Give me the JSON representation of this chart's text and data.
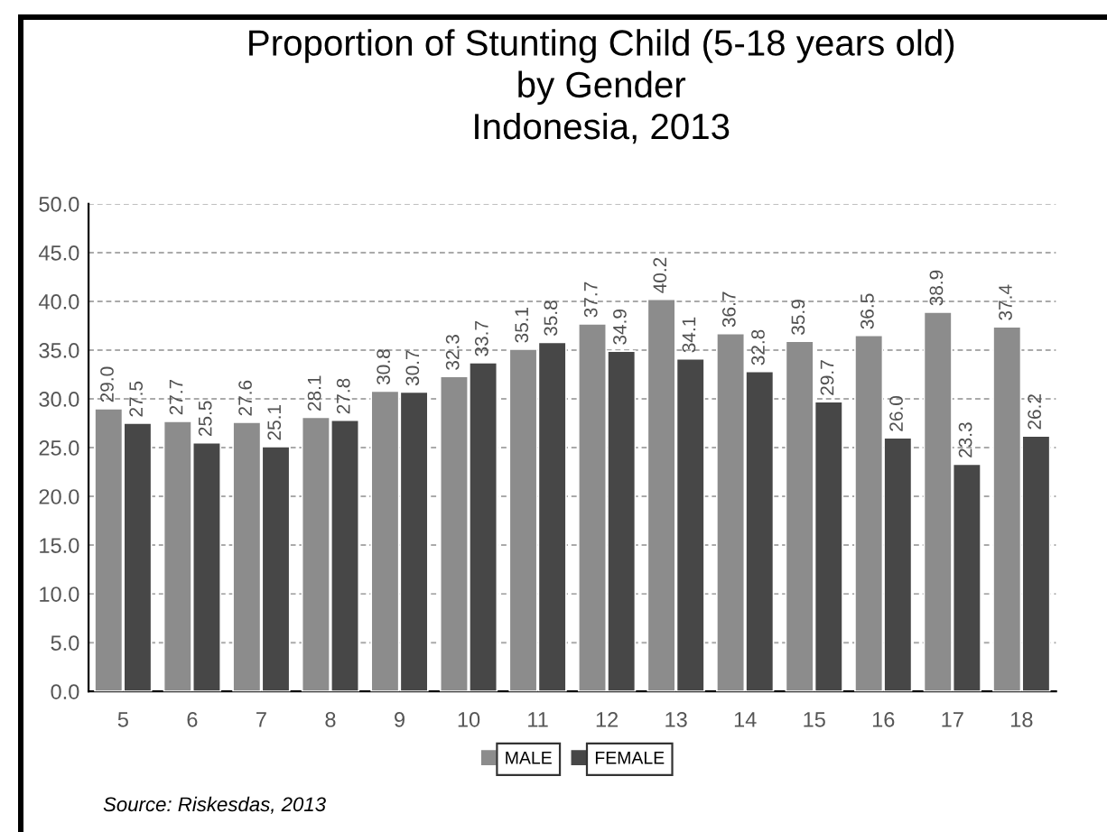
{
  "chart_data": {
    "type": "bar",
    "title": "Proportion of Stunting Child (5-18 years old)\nby Gender\nIndonesia, 2013",
    "categories": [
      "5",
      "6",
      "7",
      "8",
      "9",
      "10",
      "11",
      "12",
      "13",
      "14",
      "15",
      "16",
      "17",
      "18"
    ],
    "series": [
      {
        "name": "MALE",
        "color": "#8c8c8c",
        "values": [
          29.0,
          27.7,
          27.6,
          28.1,
          30.8,
          32.3,
          35.1,
          37.7,
          40.2,
          36.7,
          35.9,
          36.5,
          38.9,
          37.4
        ],
        "value_labels": [
          "29.0",
          "27.7",
          "27.6",
          "28.1",
          "30.8",
          "32.3",
          "35.1",
          "37.7",
          "40.2",
          "36.7",
          "35.9",
          "36.5",
          "38.9",
          "37.4"
        ]
      },
      {
        "name": "FEMALE",
        "color": "#474747",
        "values": [
          27.5,
          25.5,
          25.1,
          27.8,
          30.7,
          33.7,
          35.8,
          34.9,
          34.1,
          32.8,
          29.7,
          26.0,
          23.3,
          26.2
        ],
        "value_labels": [
          "27.5",
          "25.5",
          "25.1",
          "27.8",
          "30.7",
          "33.7",
          "35.8",
          "34.9",
          "34.1",
          "32.8",
          "29.7",
          "26.0",
          "23.3",
          "26.2"
        ]
      }
    ],
    "ylim": [
      0,
      50
    ],
    "yticks": [
      {
        "value": 0,
        "label": "0.0"
      },
      {
        "value": 5,
        "label": "5.0"
      },
      {
        "value": 10,
        "label": "10.0"
      },
      {
        "value": 15,
        "label": "15.0"
      },
      {
        "value": 20,
        "label": "20.0"
      },
      {
        "value": 25,
        "label": "25.0"
      },
      {
        "value": 30,
        "label": "30.0"
      },
      {
        "value": 35,
        "label": "35.0"
      },
      {
        "value": 40,
        "label": "40.0"
      },
      {
        "value": 45,
        "label": "45.0"
      },
      {
        "value": 50,
        "label": "50.0"
      }
    ],
    "grid": "y",
    "legend": "bottom",
    "annotations": [
      "Source: Riskesdas, 2013"
    ]
  }
}
